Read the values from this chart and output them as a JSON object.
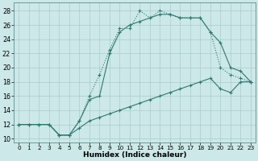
{
  "xlabel": "Humidex (Indice chaleur)",
  "background_color": "#cce8e8",
  "grid_color": "#aacccc",
  "line_color": "#2d7a6e",
  "xlim": [
    -0.5,
    23.5
  ],
  "ylim": [
    9.5,
    29.2
  ],
  "xticks": [
    0,
    1,
    2,
    3,
    4,
    5,
    6,
    7,
    8,
    9,
    10,
    11,
    12,
    13,
    14,
    15,
    16,
    17,
    18,
    19,
    20,
    21,
    22,
    23
  ],
  "yticks": [
    10,
    12,
    14,
    16,
    18,
    20,
    22,
    24,
    26,
    28
  ],
  "line1_x": [
    0,
    1,
    2,
    3,
    4,
    5,
    6,
    7,
    8,
    9,
    10,
    11,
    12,
    13,
    14,
    15,
    16,
    17,
    18,
    19,
    20,
    21,
    22,
    23
  ],
  "line1_y": [
    12,
    12,
    12,
    12,
    10.5,
    10.5,
    12.5,
    16,
    19,
    22.5,
    25.5,
    25.5,
    28,
    27,
    28,
    27.5,
    27,
    27,
    27,
    25,
    20,
    19,
    18.5,
    18
  ],
  "line2_x": [
    0,
    3,
    4,
    5,
    6,
    7,
    8,
    9,
    10,
    11,
    12,
    13,
    14,
    15,
    16,
    17,
    18,
    19,
    20,
    21,
    22,
    23
  ],
  "line2_y": [
    12,
    12,
    10.5,
    10.5,
    12.5,
    15.5,
    16,
    22,
    25,
    26,
    26.5,
    27,
    27.5,
    27.5,
    27,
    27,
    27,
    25,
    23.5,
    20,
    19.5,
    18
  ],
  "line3_x": [
    0,
    1,
    2,
    3,
    4,
    5,
    6,
    7,
    8,
    9,
    10,
    11,
    12,
    13,
    14,
    15,
    16,
    17,
    18,
    19,
    20,
    21,
    22,
    23
  ],
  "line3_y": [
    12,
    12,
    12,
    12,
    10.5,
    10.5,
    11.5,
    12.5,
    13,
    13.5,
    14,
    14.5,
    15,
    15.5,
    16,
    16.5,
    17,
    17.5,
    18,
    18.5,
    17,
    16.5,
    18,
    18
  ]
}
